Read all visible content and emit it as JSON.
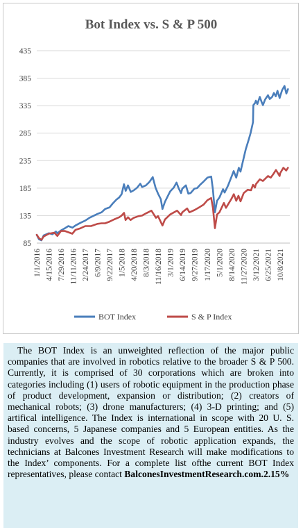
{
  "chart_data": {
    "type": "line",
    "title": "Bot Index vs. S & P 500",
    "ylim": [
      85,
      435
    ],
    "yticks": [
      85,
      135,
      185,
      235,
      285,
      335,
      385,
      435
    ],
    "xlim": [
      "2016-01-01",
      "2021-12-31"
    ],
    "xticks": [
      "1/1/2016",
      "4/15/2016",
      "7/29/2016",
      "11/11/2016",
      "2/24/2017",
      "6/9/2017",
      "9/22/2017",
      "1/5/2018",
      "4/20/2018",
      "8/3/2018",
      "11/16/2018",
      "3/1/2019",
      "6/14/2019",
      "9/27/2019",
      "1/17/2020",
      "5/1/2020",
      "8/14/2020",
      "11/27/2020",
      "3/12/2021",
      "6/25/2021",
      "10/8/2021"
    ],
    "grid": "horizontal",
    "legend_position": "bottom",
    "series": [
      {
        "name": "BOT Index",
        "color": "#4a7ebb",
        "points": [
          [
            "2016-01-01",
            100
          ],
          [
            "2016-01-20",
            92
          ],
          [
            "2016-02-11",
            90
          ],
          [
            "2016-03-01",
            99
          ],
          [
            "2016-04-15",
            103
          ],
          [
            "2016-05-15",
            101
          ],
          [
            "2016-06-15",
            106
          ],
          [
            "2016-06-27",
            103
          ],
          [
            "2016-07-29",
            108
          ],
          [
            "2016-09-01",
            112
          ],
          [
            "2016-10-01",
            116
          ],
          [
            "2016-11-05",
            113
          ],
          [
            "2016-12-01",
            117
          ],
          [
            "2017-01-15",
            122
          ],
          [
            "2017-02-24",
            126
          ],
          [
            "2017-04-01",
            131
          ],
          [
            "2017-05-01",
            134
          ],
          [
            "2017-06-09",
            138
          ],
          [
            "2017-07-15",
            141
          ],
          [
            "2017-08-15",
            147
          ],
          [
            "2017-09-22",
            150
          ],
          [
            "2017-10-20",
            157
          ],
          [
            "2017-11-20",
            164
          ],
          [
            "2017-12-15",
            168
          ],
          [
            "2018-01-05",
            174
          ],
          [
            "2018-01-25",
            192
          ],
          [
            "2018-02-09",
            180
          ],
          [
            "2018-03-01",
            190
          ],
          [
            "2018-03-25",
            178
          ],
          [
            "2018-04-20",
            181
          ],
          [
            "2018-05-20",
            186
          ],
          [
            "2018-06-15",
            193
          ],
          [
            "2018-07-01",
            187
          ],
          [
            "2018-08-03",
            190
          ],
          [
            "2018-09-01",
            196
          ],
          [
            "2018-10-01",
            205
          ],
          [
            "2018-10-25",
            186
          ],
          [
            "2018-11-16",
            175
          ],
          [
            "2018-12-10",
            165
          ],
          [
            "2018-12-24",
            147
          ],
          [
            "2019-01-15",
            160
          ],
          [
            "2019-02-10",
            171
          ],
          [
            "2019-03-01",
            179
          ],
          [
            "2019-04-01",
            186
          ],
          [
            "2019-04-25",
            195
          ],
          [
            "2019-05-15",
            184
          ],
          [
            "2019-06-03",
            176
          ],
          [
            "2019-06-14",
            184
          ],
          [
            "2019-07-15",
            190
          ],
          [
            "2019-08-05",
            175
          ],
          [
            "2019-08-25",
            176
          ],
          [
            "2019-09-27",
            184
          ],
          [
            "2019-10-20",
            185
          ],
          [
            "2019-11-15",
            191
          ],
          [
            "2019-12-15",
            197
          ],
          [
            "2020-01-17",
            204
          ],
          [
            "2020-02-19",
            206
          ],
          [
            "2020-03-05",
            182
          ],
          [
            "2020-03-23",
            141
          ],
          [
            "2020-04-10",
            162
          ],
          [
            "2020-05-01",
            168
          ],
          [
            "2020-06-01",
            183
          ],
          [
            "2020-06-15",
            177
          ],
          [
            "2020-07-15",
            190
          ],
          [
            "2020-08-14",
            206
          ],
          [
            "2020-09-01",
            216
          ],
          [
            "2020-09-23",
            204
          ],
          [
            "2020-10-15",
            222
          ],
          [
            "2020-10-30",
            215
          ],
          [
            "2020-11-27",
            240
          ],
          [
            "2020-12-15",
            256
          ],
          [
            "2021-01-10",
            274
          ],
          [
            "2021-01-25",
            285
          ],
          [
            "2021-02-15",
            305
          ],
          [
            "2021-02-18",
            336
          ],
          [
            "2021-03-05",
            340
          ],
          [
            "2021-03-12",
            344
          ],
          [
            "2021-03-25",
            338
          ],
          [
            "2021-04-15",
            351
          ],
          [
            "2021-04-30",
            342
          ],
          [
            "2021-05-12",
            336
          ],
          [
            "2021-05-31",
            346
          ],
          [
            "2021-06-25",
            354
          ],
          [
            "2021-07-10",
            347
          ],
          [
            "2021-07-31",
            351
          ],
          [
            "2021-08-15",
            358
          ],
          [
            "2021-08-31",
            352
          ],
          [
            "2021-09-15",
            362
          ],
          [
            "2021-10-04",
            349
          ],
          [
            "2021-10-08",
            352
          ],
          [
            "2021-10-25",
            363
          ],
          [
            "2021-11-15",
            371
          ],
          [
            "2021-12-01",
            357
          ],
          [
            "2021-12-15",
            365
          ]
        ]
      },
      {
        "name": "S & P Index",
        "color": "#be4b48",
        "points": [
          [
            "2016-01-01",
            100
          ],
          [
            "2016-01-20",
            94
          ],
          [
            "2016-02-11",
            91
          ],
          [
            "2016-03-01",
            97
          ],
          [
            "2016-04-15",
            102
          ],
          [
            "2016-06-01",
            104
          ],
          [
            "2016-06-27",
            98
          ],
          [
            "2016-07-29",
            107
          ],
          [
            "2016-09-01",
            107
          ],
          [
            "2016-11-04",
            102
          ],
          [
            "2016-12-01",
            109
          ],
          [
            "2017-01-15",
            112
          ],
          [
            "2017-02-24",
            116
          ],
          [
            "2017-04-15",
            116
          ],
          [
            "2017-06-09",
            120
          ],
          [
            "2017-07-15",
            121
          ],
          [
            "2017-08-15",
            121
          ],
          [
            "2017-09-22",
            124
          ],
          [
            "2017-10-31",
            128
          ],
          [
            "2017-12-15",
            132
          ],
          [
            "2018-01-05",
            135
          ],
          [
            "2018-01-26",
            140
          ],
          [
            "2018-02-08",
            127
          ],
          [
            "2018-03-01",
            132
          ],
          [
            "2018-03-23",
            127
          ],
          [
            "2018-04-20",
            131
          ],
          [
            "2018-06-01",
            134
          ],
          [
            "2018-07-01",
            135
          ],
          [
            "2018-08-03",
            139
          ],
          [
            "2018-09-20",
            144
          ],
          [
            "2018-10-29",
            131
          ],
          [
            "2018-11-16",
            134
          ],
          [
            "2018-12-24",
            117
          ],
          [
            "2019-01-15",
            128
          ],
          [
            "2019-03-01",
            137
          ],
          [
            "2019-04-30",
            144
          ],
          [
            "2019-06-03",
            136
          ],
          [
            "2019-06-14",
            141
          ],
          [
            "2019-07-26",
            148
          ],
          [
            "2019-08-15",
            141
          ],
          [
            "2019-09-27",
            145
          ],
          [
            "2019-10-31",
            149
          ],
          [
            "2019-12-15",
            155
          ],
          [
            "2020-01-17",
            163
          ],
          [
            "2020-02-19",
            167
          ],
          [
            "2020-03-05",
            149
          ],
          [
            "2020-03-23",
            112
          ],
          [
            "2020-04-10",
            137
          ],
          [
            "2020-05-01",
            141
          ],
          [
            "2020-06-08",
            158
          ],
          [
            "2020-06-26",
            149
          ],
          [
            "2020-08-14",
            166
          ],
          [
            "2020-09-02",
            174
          ],
          [
            "2020-09-23",
            162
          ],
          [
            "2020-10-12",
            171
          ],
          [
            "2020-10-30",
            161
          ],
          [
            "2020-11-27",
            176
          ],
          [
            "2020-12-31",
            182
          ],
          [
            "2021-01-29",
            181
          ],
          [
            "2021-02-15",
            191
          ],
          [
            "2021-03-04",
            186
          ],
          [
            "2021-03-12",
            192
          ],
          [
            "2021-04-15",
            201
          ],
          [
            "2021-05-12",
            198
          ],
          [
            "2021-06-25",
            207
          ],
          [
            "2021-07-19",
            204
          ],
          [
            "2021-08-15",
            212
          ],
          [
            "2021-09-02",
            218
          ],
          [
            "2021-10-04",
            207
          ],
          [
            "2021-10-08",
            212
          ],
          [
            "2021-11-05",
            222
          ],
          [
            "2021-11-30",
            217
          ],
          [
            "2021-12-15",
            222
          ]
        ]
      }
    ]
  },
  "caption": {
    "line1": "The BOT Index is an unweighted reflection of the major public companies that are involved in robotics relative to the broader S & P 500. Currently, it is comprised of 30 corporations which are broken into categories including (1) users of robotic equipment in the production phase of product development, expansion or distribution; (2) creators of mechanical robots; (3) drone manufacturers; (4) 3-D printing; and (5) artifical intelligence. The Index is international in scope with 20 U. S. based concerns, 5 Japanese companies and 5 European entities. As the industry evolves and the scope of robotic application expands, the technicians at Balcones Investment Research will make modifications to the Index’ components. For a complete list ofthe current BOT Index representatives, please contact",
    "line2": "BalconesInvestmentResearch.com.2.15%"
  }
}
